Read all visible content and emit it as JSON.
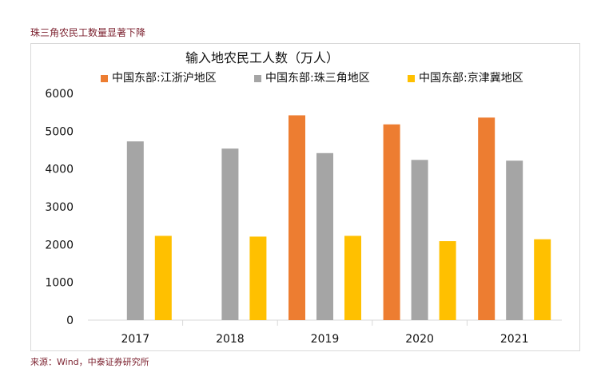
{
  "header": {
    "caption": "珠三角农民工数量显著下降"
  },
  "footer": {
    "source": "来源：Wind，中泰证券研究所"
  },
  "colors": {
    "caption_text": "#7b1f2d",
    "series_1": "#ed7d31",
    "series_2": "#a5a5a5",
    "series_3": "#ffc000",
    "axis": "#d9d9d9"
  },
  "chart_data": {
    "type": "bar",
    "title": "输入地农民工人数（万人）",
    "xlabel": "",
    "ylabel": "",
    "categories": [
      "2017",
      "2018",
      "2019",
      "2020",
      "2021"
    ],
    "ylim": [
      0,
      6000
    ],
    "yticks": [
      0,
      1000,
      2000,
      3000,
      4000,
      5000,
      6000
    ],
    "grid": false,
    "legend_position": "top",
    "series": [
      {
        "name": "中国东部:江浙沪地区",
        "color": "#ed7d31",
        "values": [
          null,
          null,
          5420,
          5180,
          5360
        ]
      },
      {
        "name": "中国东部:珠三角地区",
        "color": "#a5a5a5",
        "values": [
          4730,
          4540,
          4420,
          4240,
          4220
        ]
      },
      {
        "name": "中国东部:京津冀地区",
        "color": "#ffc000",
        "values": [
          2230,
          2210,
          2230,
          2090,
          2140
        ]
      }
    ]
  }
}
